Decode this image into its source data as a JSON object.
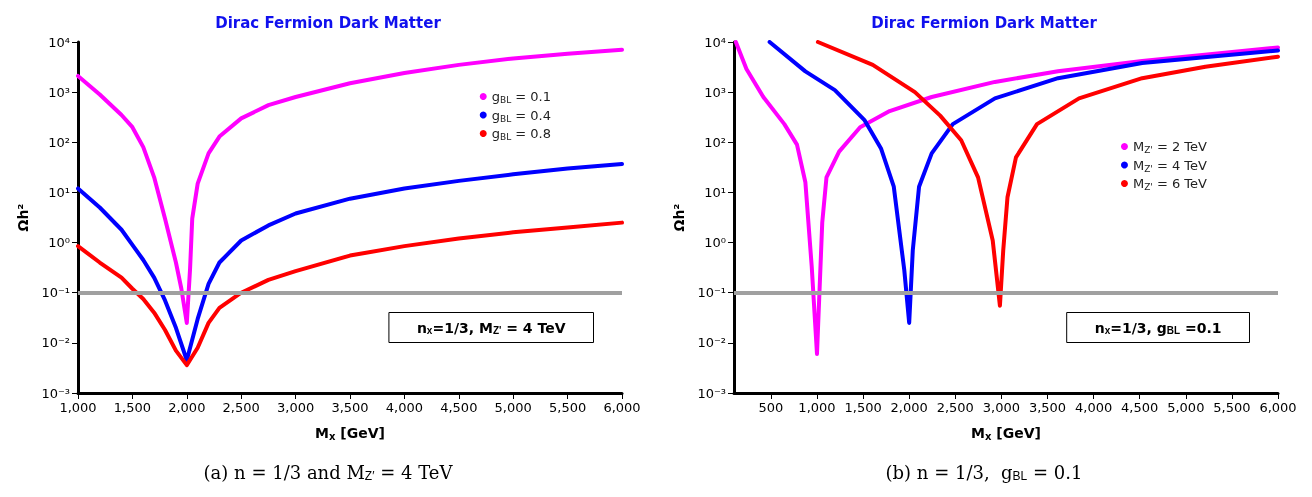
{
  "chart_data": [
    {
      "type": "line",
      "title": "Dirac Fermion Dark Matter",
      "xlabel": "M$_{x}$ [GeV]",
      "ylabel": "Ωh²",
      "log": "y",
      "legend": "top right",
      "marker": "none",
      "line_style": "solid",
      "grid": false,
      "xlim": [
        1000,
        6000
      ],
      "xticks": [
        {
          "value": 1000,
          "label": "1,000"
        },
        {
          "value": 1500,
          "label": "1,500"
        },
        {
          "value": 2000,
          "label": "2,000"
        },
        {
          "value": 2500,
          "label": "2,500"
        },
        {
          "value": 3000,
          "label": "3,000"
        },
        {
          "value": 3500,
          "label": "3,500"
        },
        {
          "value": 4000,
          "label": "4,000"
        },
        {
          "value": 4500,
          "label": "4,500"
        },
        {
          "value": 5000,
          "label": "5,000"
        },
        {
          "value": 5500,
          "label": "5,500"
        },
        {
          "value": 6000,
          "label": "6,000"
        }
      ],
      "ylim": [
        0.001,
        10000
      ],
      "yticks": [
        {
          "value": 0.001,
          "label": "10⁻³"
        },
        {
          "value": 0.01,
          "label": "10⁻²"
        },
        {
          "value": 0.1,
          "label": "10⁻¹"
        },
        {
          "value": 1,
          "label": "10⁰"
        },
        {
          "value": 10,
          "label": "10¹"
        },
        {
          "value": 100,
          "label": "10²"
        },
        {
          "value": 1000,
          "label": "10³"
        },
        {
          "value": 10000,
          "label": "10⁴"
        }
      ],
      "ref_lines": [
        {
          "axis": "y",
          "value": 0.1,
          "color": "#a0a0a0"
        }
      ],
      "annotations": [
        "n$_{x}$=1/3, M$_{Z'}$ = 4 TeV",
        "(a) n = 1/3 and M$_{Z′}$ = 4 TeV"
      ],
      "series": [
        {
          "name": "g$_{BL}$ = 0.1",
          "color": "#ff00ff",
          "x": [
            1000,
            1200,
            1400,
            1500,
            1600,
            1700,
            1800,
            1900,
            1950,
            2000,
            2030,
            2050,
            2100,
            2200,
            2300,
            2500,
            2750,
            3000,
            3500,
            4000,
            4500,
            5000,
            5500,
            6000
          ],
          "values": [
            2100,
            900,
            350,
            200,
            80,
            20,
            3,
            0.4,
            0.12,
            0.025,
            0.3,
            3,
            15,
            60,
            130,
            300,
            550,
            800,
            1500,
            2400,
            3500,
            4700,
            5800,
            7000
          ]
        },
        {
          "name": "g$_{BL}$ = 0.4",
          "color": "#0000ff",
          "x": [
            1000,
            1200,
            1400,
            1500,
            1600,
            1700,
            1800,
            1900,
            2000,
            2100,
            2200,
            2300,
            2500,
            2750,
            3000,
            3500,
            4000,
            4500,
            5000,
            5500,
            6000
          ],
          "values": [
            12,
            5,
            1.8,
            0.9,
            0.45,
            0.2,
            0.07,
            0.02,
            0.0045,
            0.03,
            0.15,
            0.4,
            1.1,
            2.2,
            3.8,
            7.5,
            12,
            17,
            23,
            30,
            37
          ]
        },
        {
          "name": "g$_{BL}$ = 0.8",
          "color": "#ff0000",
          "x": [
            1000,
            1200,
            1400,
            1500,
            1600,
            1700,
            1800,
            1900,
            2000,
            2100,
            2200,
            2300,
            2500,
            2750,
            3000,
            3500,
            4000,
            4500,
            5000,
            5500,
            6000
          ],
          "values": [
            0.85,
            0.4,
            0.2,
            0.12,
            0.075,
            0.04,
            0.018,
            0.007,
            0.0036,
            0.008,
            0.025,
            0.05,
            0.1,
            0.18,
            0.27,
            0.55,
            0.85,
            1.2,
            1.6,
            2,
            2.5
          ]
        }
      ]
    },
    {
      "type": "line",
      "title": "Dirac Fermion Dark Matter",
      "xlabel": "M$_{x}$ [GeV]",
      "ylabel": "Ωh²",
      "log": "y",
      "legend": "right",
      "marker": "none",
      "line_style": "solid",
      "grid": false,
      "xlim": [
        100,
        6000
      ],
      "xticks": [
        {
          "value": 500,
          "label": "500"
        },
        {
          "value": 1000,
          "label": "1,000"
        },
        {
          "value": 1500,
          "label": "1,500"
        },
        {
          "value": 2000,
          "label": "2,000"
        },
        {
          "value": 2500,
          "label": "2,500"
        },
        {
          "value": 3000,
          "label": "3,000"
        },
        {
          "value": 3500,
          "label": "3,500"
        },
        {
          "value": 4000,
          "label": "4,000"
        },
        {
          "value": 4500,
          "label": "4,500"
        },
        {
          "value": 5000,
          "label": "5,000"
        },
        {
          "value": 5500,
          "label": "5,500"
        },
        {
          "value": 6000,
          "label": "6,000"
        }
      ],
      "ylim": [
        0.001,
        10000
      ],
      "yticks": [
        {
          "value": 0.001,
          "label": "10⁻³"
        },
        {
          "value": 0.01,
          "label": "10⁻²"
        },
        {
          "value": 0.1,
          "label": "10⁻¹"
        },
        {
          "value": 1,
          "label": "10⁰"
        },
        {
          "value": 10,
          "label": "10¹"
        },
        {
          "value": 100,
          "label": "10²"
        },
        {
          "value": 1000,
          "label": "10³"
        },
        {
          "value": 10000,
          "label": "10⁴"
        }
      ],
      "ref_lines": [
        {
          "axis": "y",
          "value": 0.1,
          "color": "#a0a0a0"
        }
      ],
      "annotations": [
        "n$_{x}$=1/3, g$_{BL}$ =0.1",
        "(b) n = 1/3,  g$_{BL}$ = 0.1"
      ],
      "series": [
        {
          "name": "M$_{Z'}$ = 2 TeV",
          "color": "#ff00ff",
          "x": [
            120,
            235,
            418,
            646,
            783,
            874,
            943,
            1000,
            1057,
            1103,
            1240,
            1468,
            1788,
            2244,
            2930,
            3614,
            4527,
            6000
          ],
          "values": [
            10000,
            2900,
            800,
            230,
            90,
            16,
            0.33,
            0.006,
            2.5,
            20,
            65,
            200,
            420,
            800,
            1600,
            2600,
            4200,
            7800
          ]
        },
        {
          "name": "M$_{Z'}$ = 4 TeV",
          "color": "#0000ff",
          "x": [
            486,
            874,
            1194,
            1513,
            1696,
            1833,
            1947,
            2000,
            2039,
            2107,
            2244,
            2473,
            2930,
            3614,
            4527,
            6000
          ],
          "values": [
            10000,
            2600,
            1100,
            280,
            74,
            13,
            0.28,
            0.025,
            0.7,
            13,
            60,
            230,
            750,
            1900,
            3800,
            6800
          ]
        },
        {
          "name": "M$_{Z'}$ = 6 TeV",
          "color": "#ff0000",
          "x": [
            1010,
            1605,
            2062,
            2336,
            2564,
            2747,
            2906,
            2984,
            3020,
            3066,
            3158,
            3386,
            3842,
            4527,
            5212,
            6000
          ],
          "values": [
            10000,
            3500,
            1000,
            340,
            110,
            20,
            1.1,
            0.055,
            0.7,
            8,
            50,
            230,
            750,
            1900,
            3200,
            5100
          ]
        }
      ]
    }
  ]
}
